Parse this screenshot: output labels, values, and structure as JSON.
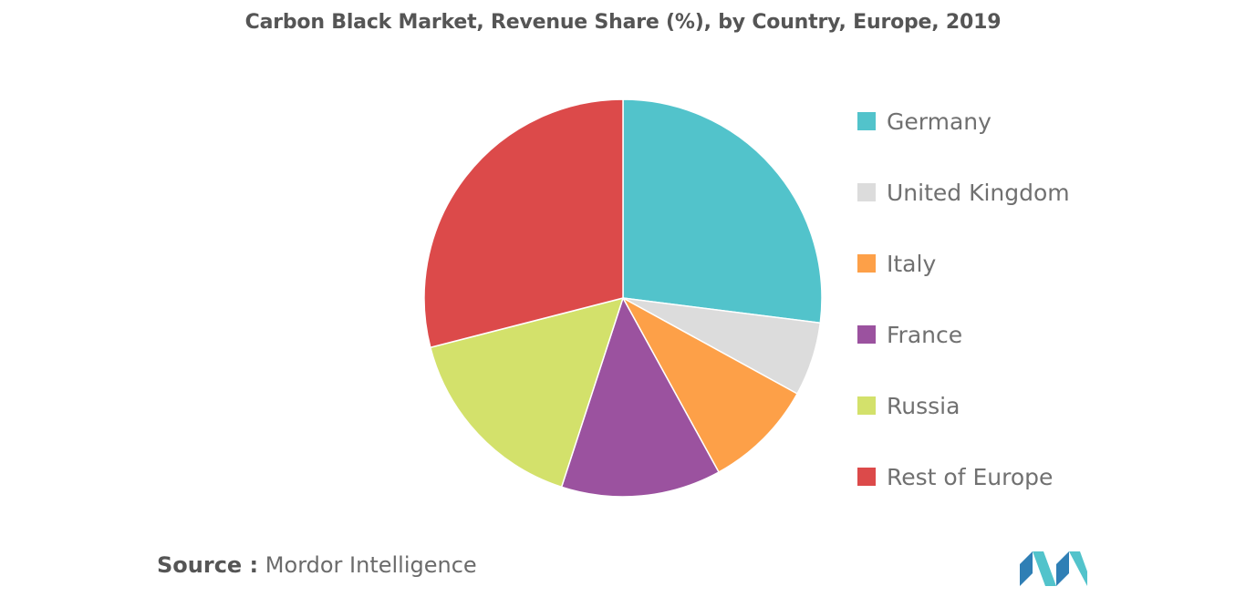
{
  "chart_data": {
    "type": "pie",
    "title": "Carbon Black Market, Revenue Share (%), by Country, Europe, 2019",
    "categories": [
      "Germany",
      "United Kingdom",
      "Italy",
      "France",
      "Russia",
      "Rest of Europe"
    ],
    "values": [
      27,
      6,
      9,
      13,
      16,
      29
    ],
    "colors": [
      "#52C3CB",
      "#DCDCDC",
      "#FDA048",
      "#9B529F",
      "#D3E16B",
      "#DC4A4A"
    ],
    "legend_position": "right",
    "start_angle_deg": 0,
    "direction": "clockwise"
  },
  "source": {
    "label": "Source :",
    "text": "Mordor Intelligence"
  },
  "logo": {
    "icon": "mordor-intelligence-logo-icon",
    "colors": [
      "#2F7FB5",
      "#52C3CB"
    ]
  }
}
